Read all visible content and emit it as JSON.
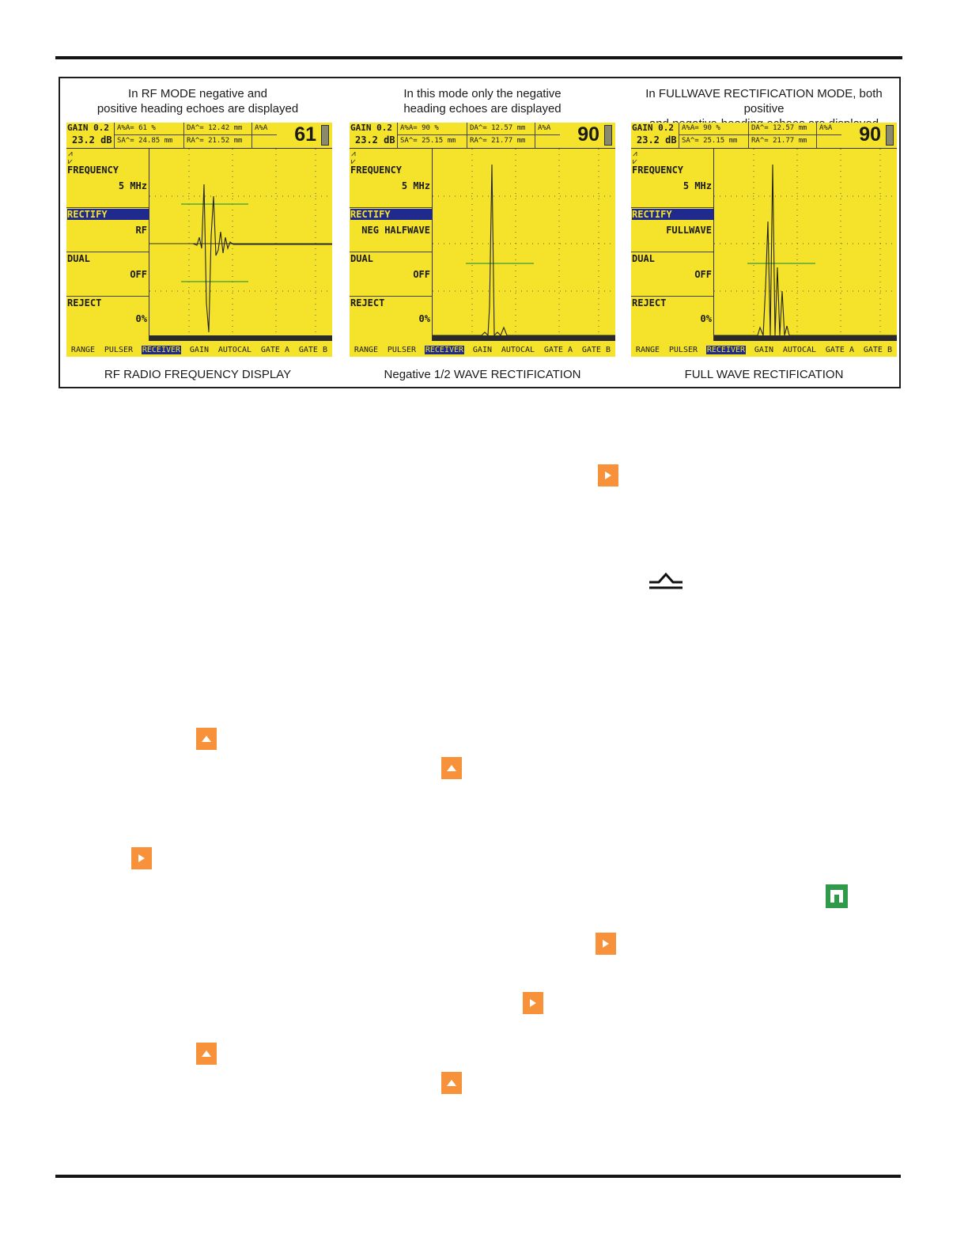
{
  "figure": {
    "panels": [
      {
        "heading": "In RF MODE negative and\npositive heading echoes are displayed",
        "caption": "RF RADIO FREQUENCY DISPLAY",
        "screen": {
          "gain_step": "GAIN  0.2",
          "gain_db": "23.2 dB",
          "a_pct": "A%A=     61 %",
          "s_a": "SA^=   24.85 mm",
          "d_a": "DA^=   12.42 mm",
          "r_a": "RA^=   21.52 mm",
          "aa_label": "A%A",
          "big_value": "61",
          "menu": [
            {
              "label": "FREQUENCY",
              "value": "5 MHz"
            },
            {
              "label": "RECTIFY",
              "value": "RF"
            },
            {
              "label": "DUAL",
              "value": "OFF"
            },
            {
              "label": "REJECT",
              "value": "0%"
            }
          ],
          "tabs": [
            "RANGE",
            "PULSER",
            "RECEIVER",
            "GAIN",
            "AUTOCAL",
            "GATE A",
            "GATE B"
          ],
          "active_tab": "RECEIVER",
          "waveform": "rf"
        }
      },
      {
        "heading": "In this mode only the negative\nheading echoes are displayed",
        "caption": "Negative 1/2 WAVE RECTIFICATION",
        "screen": {
          "gain_step": "GAIN  0.2",
          "gain_db": "23.2 dB",
          "a_pct": "A%A=     90 %",
          "s_a": "SA^=   25.15 mm",
          "d_a": "DA^=   12.57 mm",
          "r_a": "RA^=   21.77 mm",
          "aa_label": "A%A",
          "big_value": "90",
          "menu": [
            {
              "label": "FREQUENCY",
              "value": "5 MHz"
            },
            {
              "label": "RECTIFY",
              "value": "NEG HALFWAVE"
            },
            {
              "label": "DUAL",
              "value": "OFF"
            },
            {
              "label": "REJECT",
              "value": "0%"
            }
          ],
          "tabs": [
            "RANGE",
            "PULSER",
            "RECEIVER",
            "GAIN",
            "AUTOCAL",
            "GATE A",
            "GATE B"
          ],
          "active_tab": "RECEIVER",
          "waveform": "neg"
        }
      },
      {
        "heading": "In FULLWAVE RECTIFICATION MODE, both positive\nand negative-heading echoes are displayed",
        "caption": "FULL WAVE RECTIFICATION",
        "screen": {
          "gain_step": "GAIN  0.2",
          "gain_db": "23.2 dB",
          "a_pct": "A%A=     90 %",
          "s_a": "SA^=   25.15 mm",
          "d_a": "DA^=   12.57 mm",
          "r_a": "RA^=   21.77 mm",
          "aa_label": "A%A",
          "big_value": "90",
          "menu": [
            {
              "label": "FREQUENCY",
              "value": "5 MHz"
            },
            {
              "label": "RECTIFY",
              "value": "FULLWAVE"
            },
            {
              "label": "DUAL",
              "value": "OFF"
            },
            {
              "label": "REJECT",
              "value": "0%"
            }
          ],
          "tabs": [
            "RANGE",
            "PULSER",
            "RECEIVER",
            "GAIN",
            "AUTOCAL",
            "GATE A",
            "GATE B"
          ],
          "active_tab": "RECEIVER",
          "waveform": "full"
        }
      }
    ]
  },
  "icons": {
    "arrow_right": "play-right-icon",
    "arrow_up": "arrow-up-icon",
    "home": "home-icon",
    "rectify_symbol": "rectify-symbol-icon"
  },
  "colors": {
    "screen_bg": "#f4e32a",
    "highlight": "#1f2a8c",
    "button_orange": "#f7923a",
    "home_green": "#2f9a4a",
    "gate_line": "#3a9a3a"
  }
}
